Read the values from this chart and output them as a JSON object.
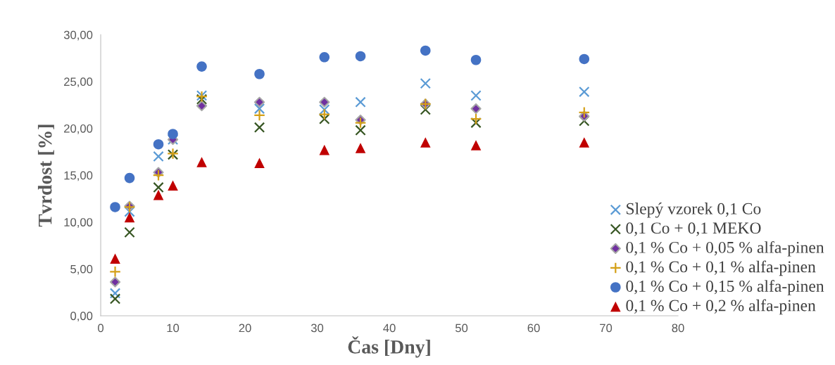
{
  "chart_data": {
    "type": "scatter",
    "xlabel": "Čas [Dny]",
    "ylabel": "Tvrdost [%]",
    "x": [
      2,
      4,
      8,
      10,
      14,
      22,
      31,
      36,
      45,
      52,
      67
    ],
    "series": [
      {
        "name": "Slepý vzorek 0,1 Co",
        "color": "#5b9bd5",
        "marker": "cross",
        "values": [
          2.4,
          11.1,
          17.0,
          18.8,
          23.5,
          22.1,
          22.0,
          22.8,
          24.8,
          23.5,
          23.9
        ]
      },
      {
        "name": "0,1 Co + 0,1 MEKO",
        "color": "#375623",
        "marker": "cross",
        "values": [
          1.8,
          8.9,
          13.7,
          17.2,
          23.1,
          20.1,
          21.0,
          19.8,
          22.0,
          20.6,
          20.8
        ]
      },
      {
        "name": "0,1 % Co + 0,05 % alfa-pinen",
        "color": "#7030a0",
        "marker": "diamond",
        "values": [
          3.6,
          11.7,
          15.3,
          18.8,
          22.4,
          22.8,
          22.8,
          20.9,
          22.6,
          22.1,
          21.3
        ]
      },
      {
        "name": "0,1 % Co + 0,1 % alfa-pinen",
        "color": "#d4a017",
        "marker": "plus",
        "values": [
          4.7,
          11.6,
          15.0,
          17.3,
          23.4,
          21.4,
          21.5,
          20.6,
          22.6,
          21.0,
          21.7
        ]
      },
      {
        "name": "0,1 % Co + 0,15 % alfa-pinen",
        "color": "#4472c4",
        "marker": "circle",
        "values": [
          11.6,
          14.7,
          18.3,
          19.4,
          26.6,
          25.8,
          27.6,
          27.7,
          28.3,
          27.3,
          27.4
        ]
      },
      {
        "name": "0,1 % Co + 0,2 % alfa-pinen",
        "color": "#c00000",
        "marker": "triangle",
        "values": [
          6.1,
          10.5,
          12.9,
          13.9,
          16.4,
          16.3,
          17.7,
          17.9,
          18.5,
          18.2,
          18.5
        ]
      }
    ],
    "xlim": [
      0,
      80
    ],
    "xticks": [
      0,
      10,
      20,
      30,
      40,
      50,
      60,
      70,
      80
    ],
    "ylim": [
      0,
      30
    ],
    "yticks": [
      {
        "value": 0,
        "label": "0,00"
      },
      {
        "value": 5,
        "label": "5,00"
      },
      {
        "value": 10,
        "label": "10,00"
      },
      {
        "value": 15,
        "label": "15,00"
      },
      {
        "value": 20,
        "label": "20,00"
      },
      {
        "value": 25,
        "label": "25,00"
      },
      {
        "value": 30,
        "label": "30,00"
      }
    ],
    "grid": false,
    "legend": "bottom right"
  }
}
